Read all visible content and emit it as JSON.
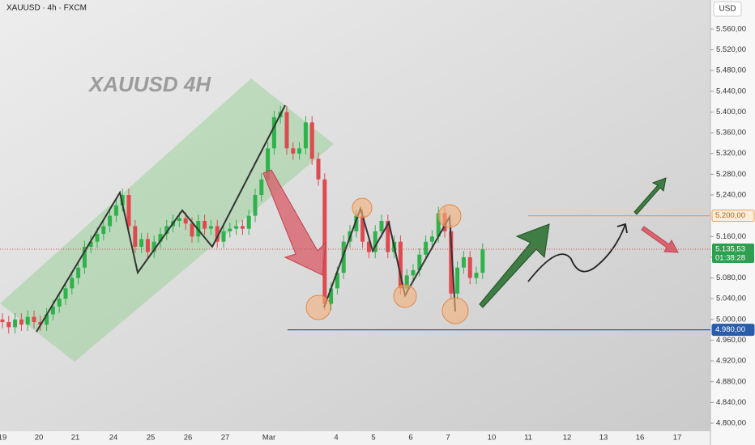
{
  "chart_data": {
    "type": "candlestick",
    "title": "XAUUSD · 4h · FXCM",
    "watermark": "XAUUSD 4H",
    "currency": "USD",
    "x_axis_labels": [
      "19",
      "20",
      "21",
      "24",
      "25",
      "26",
      "27",
      "Mar",
      "4",
      "5",
      "6",
      "7",
      "10",
      "11",
      "12",
      "13",
      "16",
      "17"
    ],
    "up_color": "#2fb24c",
    "down_color": "#de4a4f",
    "ylim": [
      4786,
      5616
    ],
    "yticks": [
      {
        "value": 5560,
        "label": "5.560,00"
      },
      {
        "value": 5520,
        "label": "5.520,00"
      },
      {
        "value": 5480,
        "label": "5.480,00"
      },
      {
        "value": 5440,
        "label": "5.440,00"
      },
      {
        "value": 5400,
        "label": "5.400,00"
      },
      {
        "value": 5360,
        "label": "5.360,00"
      },
      {
        "value": 5320,
        "label": "5.320,00"
      },
      {
        "value": 5280,
        "label": "5.280,00"
      },
      {
        "value": 5240,
        "label": "5.240,00"
      },
      {
        "value": 5160,
        "label": "5.160,00"
      },
      {
        "value": 5120,
        "label": "5.120,00"
      },
      {
        "value": 5080,
        "label": "5.080,00"
      },
      {
        "value": 5040,
        "label": "5.040,00"
      },
      {
        "value": 5000,
        "label": "5.000,00"
      },
      {
        "value": 4960,
        "label": "4.960,00"
      },
      {
        "value": 4920,
        "label": "4.920,00"
      },
      {
        "value": 4880,
        "label": "4.880,00"
      },
      {
        "value": 4840,
        "label": "4.840,00"
      },
      {
        "value": 4800,
        "label": "4.800,00"
      }
    ],
    "open": [
      5000,
      4995,
      4985,
      5000,
      4990,
      5005,
      4995,
      4990,
      5010,
      5025,
      5040,
      5060,
      5080,
      5100,
      5140,
      5150,
      5165,
      5180,
      5200,
      5220,
      5240,
      5180,
      5140,
      5155,
      5130,
      5150,
      5165,
      5180,
      5190,
      5195,
      5185,
      5160,
      5190,
      5175,
      5180,
      5150,
      5170,
      5175,
      5180,
      5175,
      5200,
      5240,
      5270,
      5330,
      5390,
      5400,
      5330,
      5320,
      5330,
      5380,
      5310,
      5270,
      5030,
      5060,
      5090,
      5150,
      5170,
      5200,
      5150,
      5130,
      5170,
      5190,
      5130,
      5150,
      5060,
      5085,
      5095,
      5125,
      5150,
      5160,
      5205,
      5170,
      5050,
      5100,
      5120,
      5080,
      5090
    ],
    "high": [
      5012,
      5007,
      5012,
      5012,
      5017,
      5017,
      5007,
      5022,
      5037,
      5052,
      5072,
      5092,
      5112,
      5152,
      5162,
      5177,
      5192,
      5212,
      5232,
      5252,
      5252,
      5192,
      5167,
      5167,
      5162,
      5177,
      5192,
      5202,
      5207,
      5207,
      5197,
      5202,
      5202,
      5192,
      5192,
      5182,
      5187,
      5192,
      5192,
      5212,
      5252,
      5282,
      5342,
      5402,
      5412,
      5412,
      5342,
      5342,
      5392,
      5392,
      5322,
      5282,
      5072,
      5102,
      5162,
      5182,
      5212,
      5212,
      5162,
      5182,
      5202,
      5202,
      5162,
      5162,
      5097,
      5107,
      5137,
      5162,
      5172,
      5217,
      5217,
      5182,
      5112,
      5132,
      5132,
      5102,
      5147
    ],
    "low": [
      4983,
      4973,
      4973,
      4978,
      4978,
      4983,
      4978,
      4978,
      4998,
      5013,
      5028,
      5048,
      5068,
      5088,
      5128,
      5138,
      5153,
      5168,
      5188,
      5208,
      5168,
      5128,
      5128,
      5118,
      5118,
      5138,
      5153,
      5168,
      5178,
      5173,
      5148,
      5148,
      5163,
      5163,
      5138,
      5138,
      5158,
      5163,
      5163,
      5163,
      5188,
      5228,
      5258,
      5318,
      5378,
      5318,
      5308,
      5308,
      5318,
      5298,
      5258,
      5018,
      5018,
      5048,
      5078,
      5138,
      5158,
      5138,
      5118,
      5118,
      5158,
      5118,
      5118,
      5048,
      5048,
      5073,
      5083,
      5113,
      5138,
      5148,
      5158,
      5038,
      5038,
      5088,
      5068,
      5068,
      5078
    ],
    "close": [
      4995,
      4985,
      5000,
      4990,
      5005,
      4995,
      4990,
      5010,
      5025,
      5040,
      5060,
      5080,
      5100,
      5140,
      5150,
      5165,
      5180,
      5200,
      5220,
      5240,
      5180,
      5140,
      5155,
      5130,
      5150,
      5165,
      5180,
      5190,
      5195,
      5185,
      5160,
      5190,
      5175,
      5180,
      5150,
      5170,
      5175,
      5180,
      5175,
      5200,
      5240,
      5270,
      5330,
      5390,
      5400,
      5330,
      5320,
      5330,
      5380,
      5310,
      5270,
      5030,
      5060,
      5090,
      5150,
      5170,
      5200,
      5150,
      5130,
      5170,
      5190,
      5130,
      5150,
      5060,
      5085,
      5095,
      5125,
      5150,
      5160,
      5205,
      5170,
      5050,
      5100,
      5120,
      5080,
      5090,
      5135
    ],
    "levels": [
      {
        "value": 5200,
        "label": "5.200,00",
        "color": "#ef9d55"
      },
      {
        "value": 4980,
        "label": "4.980,00",
        "color": "#2a5caa"
      }
    ],
    "last_price": {
      "value": 5135.53,
      "label": "5.135,53",
      "countdown": "01:38:28",
      "color": "#2e9e4f"
    }
  }
}
